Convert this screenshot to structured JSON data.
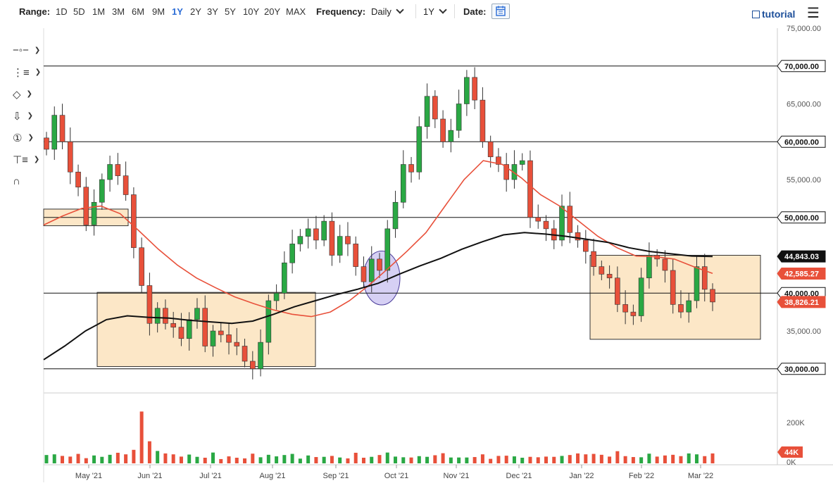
{
  "topbar": {
    "range_label": "Range:",
    "ranges": [
      "1D",
      "5D",
      "1M",
      "3M",
      "6M",
      "9M",
      "1Y",
      "2Y",
      "3Y",
      "5Y",
      "10Y",
      "20Y",
      "MAX"
    ],
    "active_range": "1Y",
    "frequency_label": "Frequency:",
    "frequency_value": "Daily",
    "period_value": "1Y",
    "date_label": "Date:",
    "tutorial_label": "tutorial"
  },
  "toolbar": {
    "tools": [
      "crosshair-tool",
      "trend-line-tool",
      "shapes-tool",
      "arrow-tool",
      "annotation-tool",
      "fibonacci-tool",
      "magnet-tool"
    ]
  },
  "chart_data": {
    "type": "candlestick",
    "instrument_colors": {
      "up": "#2aa844",
      "down": "#e8503a",
      "ma_fast": "#e8503a",
      "ma_slow": "#111111",
      "zone_fill": "#fbe3bd",
      "zone_stroke": "#333333"
    },
    "x_ticks": [
      "May '21",
      "Jun '21",
      "Jul '21",
      "Aug '21",
      "Sep '21",
      "Oct '21",
      "Nov '21",
      "Dec '21",
      "Jan '22",
      "Feb '22",
      "Mar '22"
    ],
    "y_ticks": [
      "75,000.00",
      "65,000.00",
      "55,000.00",
      "35,000.00"
    ],
    "horizontal_levels": [
      {
        "value": 70000,
        "label": "70,000.00"
      },
      {
        "value": 60000,
        "label": "60,000.00"
      },
      {
        "value": 50000,
        "label": "50,000.00"
      },
      {
        "value": 40000,
        "label": "40,000.00"
      },
      {
        "value": 30000,
        "label": "30,000.00"
      }
    ],
    "price_tags": [
      {
        "value": 44843.03,
        "label": "44,843.03",
        "color": "#111111"
      },
      {
        "value": 42585.27,
        "label": "42,585.27",
        "color": "#e8503a"
      },
      {
        "value": 38826.21,
        "label": "38,826.21",
        "color": "#e8503a"
      }
    ],
    "ylim": [
      27000,
      75000
    ],
    "volume_ticks": [
      "200K",
      "0K"
    ],
    "volume_tag": "44K",
    "volume_max": 250,
    "zones": [
      {
        "from": "Apr '21",
        "to": "May '21",
        "low": 48900,
        "high": 51100
      },
      {
        "from": "Jun '21",
        "to": "Aug '21",
        "low": 30300,
        "high": 40100
      },
      {
        "from": "Jan '22",
        "to": "Mar '22",
        "low": 33900,
        "high": 45000
      }
    ],
    "circle_highlight": {
      "date": "Sep '21",
      "low": 39000,
      "high": 45000
    },
    "ma_fast_values": [
      49000,
      50200,
      51200,
      51500,
      50500,
      48200,
      45800,
      43700,
      42000,
      40700,
      39500,
      38600,
      37800,
      37200,
      36900,
      37500,
      39000,
      41000,
      43200,
      45500,
      48000,
      51500,
      55000,
      57500,
      57000,
      55200,
      53000,
      51500,
      49500,
      47500,
      46000,
      44900,
      44800,
      44500,
      43500,
      42600
    ],
    "ma_slow_values": [
      31200,
      33000,
      35000,
      36500,
      37000,
      36800,
      36700,
      36400,
      36200,
      36000,
      36300,
      37200,
      38200,
      39000,
      39800,
      40500,
      41300,
      42500,
      43600,
      44600,
      45800,
      46800,
      47700,
      48000,
      47800,
      47500,
      47100,
      46700,
      46000,
      45500,
      45200,
      44900,
      44843
    ],
    "candles_close": [
      59000,
      63500,
      60000,
      56000,
      54000,
      49000,
      52000,
      55000,
      57000,
      55500,
      53000,
      46000,
      41000,
      36000,
      38000,
      36000,
      35500,
      34000,
      36500,
      38000,
      33000,
      35000,
      34500,
      33500,
      33000,
      31000,
      30000,
      33500,
      39000,
      40000,
      44000,
      46500,
      47500,
      48500,
      47000,
      49500,
      45000,
      47500,
      46500,
      43500,
      41500,
      44500,
      43000,
      48500,
      52000,
      57000,
      56000,
      62000,
      66000,
      63000,
      60000,
      61500,
      65000,
      68500,
      65500,
      60000,
      58000,
      57000,
      55000,
      57000,
      57500,
      50000,
      49500,
      48500,
      47000,
      51500,
      48000,
      47000,
      45500,
      43500,
      42500,
      42000,
      38500,
      37500,
      37000,
      42000,
      45000,
      44500,
      43000,
      38500,
      37500,
      39000,
      43500,
      40500,
      38826
    ]
  },
  "volume_data": [
    37,
    40,
    33,
    30,
    42,
    23,
    35,
    29,
    38,
    47,
    40,
    60,
    230,
    98,
    55,
    44,
    40,
    30,
    39,
    29,
    25,
    48,
    19,
    31,
    25,
    22,
    43,
    27,
    38,
    31,
    37,
    42,
    21,
    35,
    28,
    29,
    33,
    26,
    22,
    47,
    25,
    29,
    37,
    48,
    30,
    27,
    26,
    32,
    29,
    36,
    45,
    26,
    26,
    26,
    28,
    40,
    20,
    33,
    34,
    31,
    25,
    29,
    27,
    30,
    29,
    33,
    37,
    44,
    40,
    42,
    38,
    30,
    54,
    32,
    28,
    27,
    43,
    30,
    35,
    38,
    32,
    44,
    40,
    32,
    44
  ]
}
